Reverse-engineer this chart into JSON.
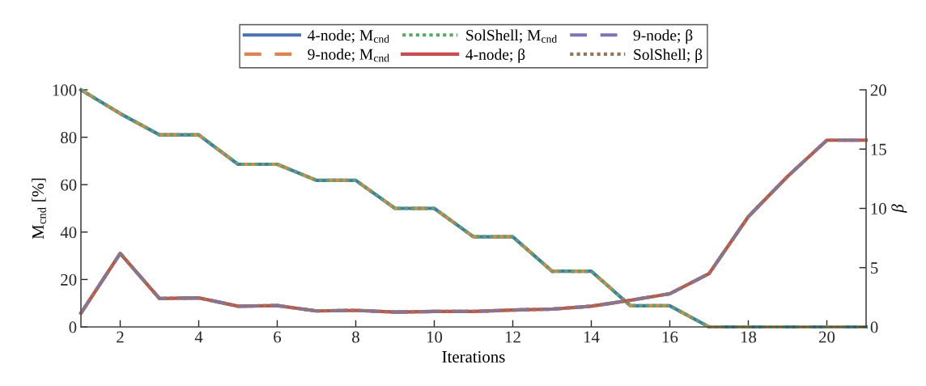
{
  "chart_data": {
    "type": "line",
    "xlabel": "Iterations",
    "ylabel": "M$_{cnd}$ [%]",
    "y2label": "β",
    "x": [
      1,
      2,
      3,
      4,
      5,
      6,
      7,
      8,
      9,
      10,
      11,
      12,
      13,
      14,
      15,
      16,
      17,
      18,
      19,
      20,
      21
    ],
    "xlim": [
      1,
      21
    ],
    "xticks": [
      2,
      4,
      6,
      8,
      10,
      12,
      14,
      16,
      18,
      20
    ],
    "ylim": [
      0,
      100
    ],
    "yticks": [
      0,
      20,
      40,
      60,
      80,
      100
    ],
    "y2lim": [
      0,
      20
    ],
    "y2ticks": [
      0,
      5,
      10,
      15,
      20
    ],
    "grid": false,
    "legend": "top",
    "marker": "none",
    "series": [
      {
        "name": "4-node; M$_{cnd}$",
        "color": "#4c72b0",
        "line_style": "solid",
        "values": [
          100,
          90,
          81,
          81,
          68.6,
          68.6,
          61.8,
          61.8,
          50,
          50,
          38,
          38,
          23.5,
          23.5,
          8.9,
          8.9,
          0,
          0,
          0,
          0,
          0
        ]
      },
      {
        "name": "9-node; M$_{cnd}$",
        "color": "#dd8452",
        "line_style": "dashed",
        "values": [
          100,
          90,
          81,
          81,
          68.6,
          68.6,
          61.8,
          61.8,
          50,
          50,
          38,
          38,
          23.5,
          23.5,
          8.9,
          8.9,
          0,
          0,
          0,
          0,
          0
        ]
      },
      {
        "name": "SolShell; M$_{cnd}$",
        "color": "#55a868",
        "line_style": "dotted",
        "values": [
          100,
          90,
          81,
          81,
          68.6,
          68.6,
          61.8,
          61.8,
          50,
          50,
          38,
          38,
          23.5,
          23.5,
          8.9,
          8.9,
          0,
          0,
          0,
          0,
          0
        ]
      },
      {
        "name": "4-node; β",
        "color": "#c44e52",
        "line_style": "solid",
        "axis": "y2",
        "values": [
          1.16,
          6.2,
          2.4,
          2.45,
          1.75,
          1.8,
          1.35,
          1.4,
          1.25,
          1.3,
          1.3,
          1.43,
          1.5,
          1.75,
          2.25,
          2.8,
          4.5,
          9.3,
          12.7,
          15.75,
          15.75
        ]
      },
      {
        "name": "9-node; β",
        "color": "#8172b3",
        "line_style": "dashed",
        "axis": "y2",
        "values": [
          1.16,
          6.2,
          2.4,
          2.45,
          1.75,
          1.8,
          1.35,
          1.4,
          1.25,
          1.3,
          1.3,
          1.43,
          1.5,
          1.75,
          2.25,
          2.8,
          4.5,
          9.3,
          12.7,
          15.75,
          15.75
        ]
      },
      {
        "name": "SolShell; β",
        "color": "#937860",
        "line_style": "dotted",
        "axis": "y2",
        "values": [
          1.16,
          6.2,
          2.4,
          2.45,
          1.75,
          1.8,
          1.35,
          1.4,
          1.25,
          1.3,
          1.3,
          1.43,
          1.5,
          1.75,
          2.25,
          2.8,
          4.5,
          9.3,
          12.7,
          15.75,
          15.75
        ]
      }
    ]
  }
}
